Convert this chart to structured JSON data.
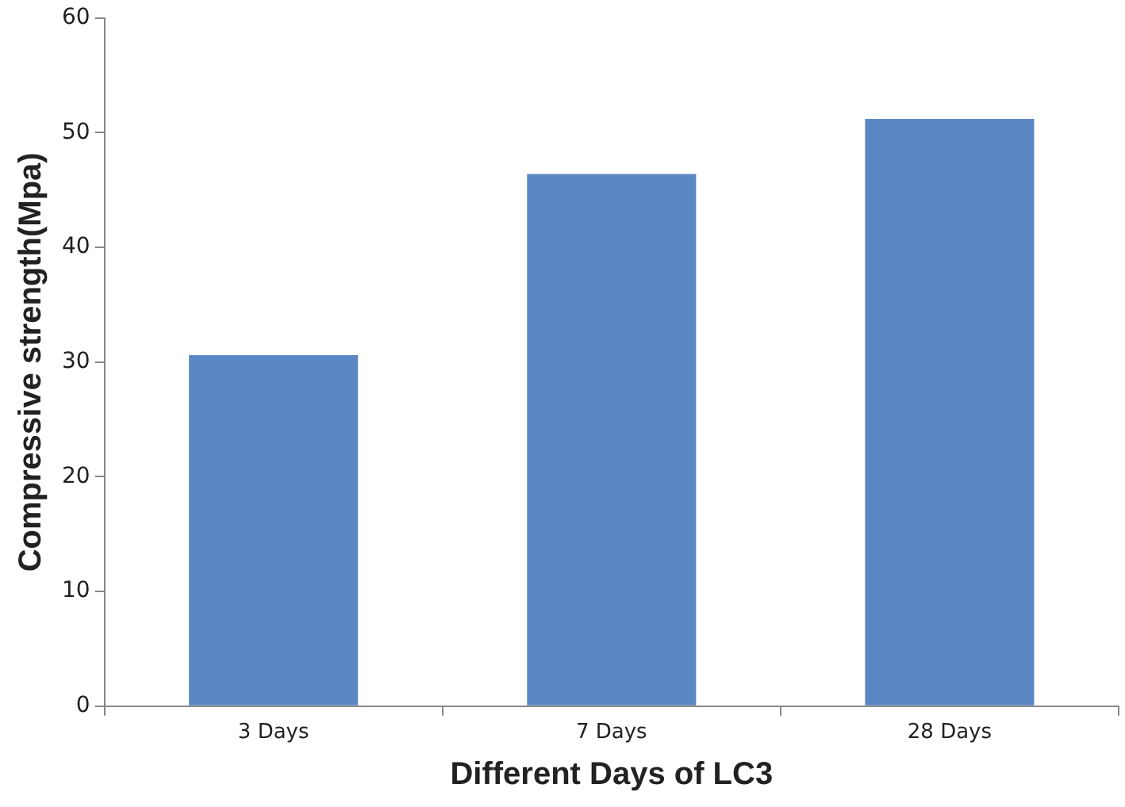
{
  "chart_data": {
    "type": "bar",
    "xlabel": "Different Days of LC3",
    "ylabel": "Compressive strength(Mpa)",
    "categories": [
      "3 Days",
      "7 Days",
      "28 Days"
    ],
    "values": [
      30.6,
      46.4,
      51.2
    ],
    "color": "#5b87c5",
    "ylim": [
      0,
      60
    ],
    "yticks": [
      0,
      10,
      20,
      30,
      40,
      50,
      60
    ],
    "grid": false,
    "legend": false
  }
}
